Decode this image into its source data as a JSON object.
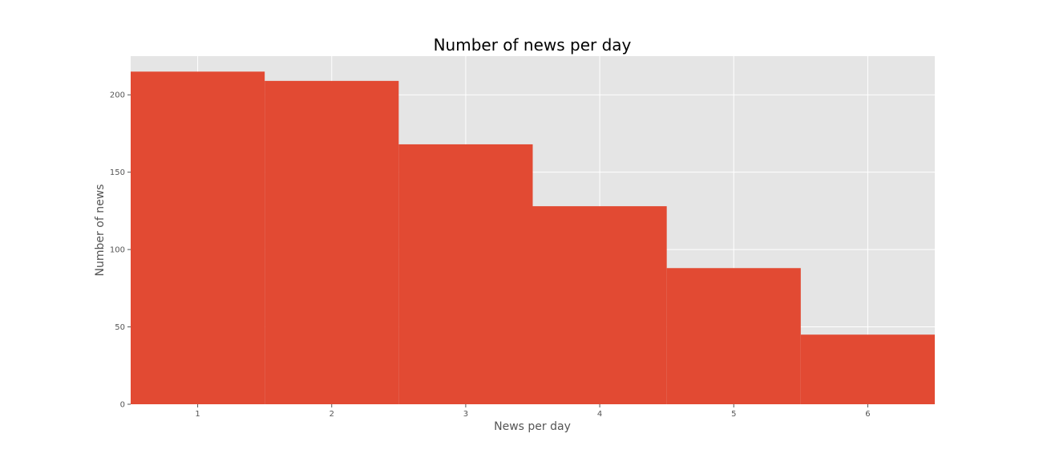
{
  "chart_data": {
    "type": "bar",
    "title": "Number of news per day",
    "xlabel": "News per day",
    "ylabel": "Number of news",
    "categories": [
      "1",
      "2",
      "3",
      "4",
      "5",
      "6"
    ],
    "values": [
      215,
      209,
      168,
      128,
      88,
      45
    ],
    "xlim": [
      0.5,
      6.5
    ],
    "ylim": [
      0,
      225
    ],
    "x_ticks": [
      1,
      2,
      3,
      4,
      5,
      6
    ],
    "y_ticks": [
      0,
      50,
      100,
      150,
      200
    ],
    "grid": true,
    "colors": {
      "bar": "#e24a33",
      "plot_background": "#e5e5e5",
      "grid": "#ffffff",
      "tick_text": "#555555",
      "title_text": "#000000"
    }
  }
}
